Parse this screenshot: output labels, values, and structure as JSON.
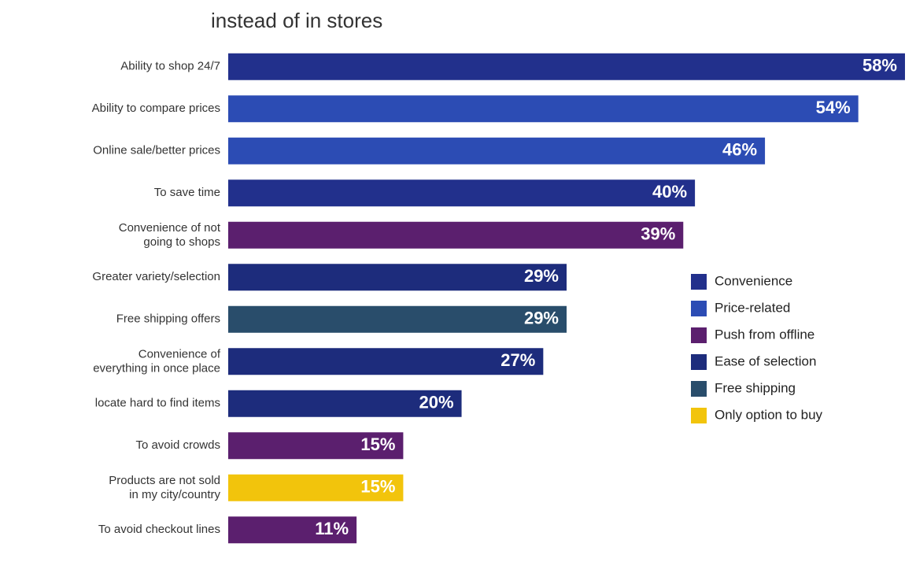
{
  "chart_data": {
    "type": "hbar",
    "title": "instead of in stores",
    "categories": [
      "Ability to shop 24/7",
      "Ability to compare prices",
      "Online sale/better prices",
      "To save time",
      "Convenience of not going to shops",
      "Greater variety/selection",
      "Free shipping offers",
      "Convenience of everything in once place",
      "locate hard to find items",
      "To avoid crowds",
      "Products are not sold in my city/country",
      "To avoid checkout lines"
    ],
    "values": [
      58,
      54,
      46,
      40,
      39,
      29,
      29,
      27,
      20,
      15,
      15,
      11
    ],
    "value_labels": [
      "58%",
      "54%",
      "46%",
      "40%",
      "39%",
      "29%",
      "29%",
      "27%",
      "20%",
      "15%",
      "15%",
      "11%"
    ],
    "groups": [
      0,
      1,
      1,
      0,
      2,
      3,
      4,
      3,
      3,
      2,
      5,
      2
    ],
    "series": [
      {
        "name": "Convenience",
        "color": "#22308c"
      },
      {
        "name": "Price-related",
        "color": "#2c4cb4"
      },
      {
        "name": "Push from offline",
        "color": "#5b1f6e"
      },
      {
        "name": "Ease of selection",
        "color": "#1d2c7c"
      },
      {
        "name": "Free shipping",
        "color": "#294d6b"
      },
      {
        "name": "Only option to buy",
        "color": "#f2c40c"
      }
    ],
    "xlim": [
      0,
      58
    ]
  }
}
